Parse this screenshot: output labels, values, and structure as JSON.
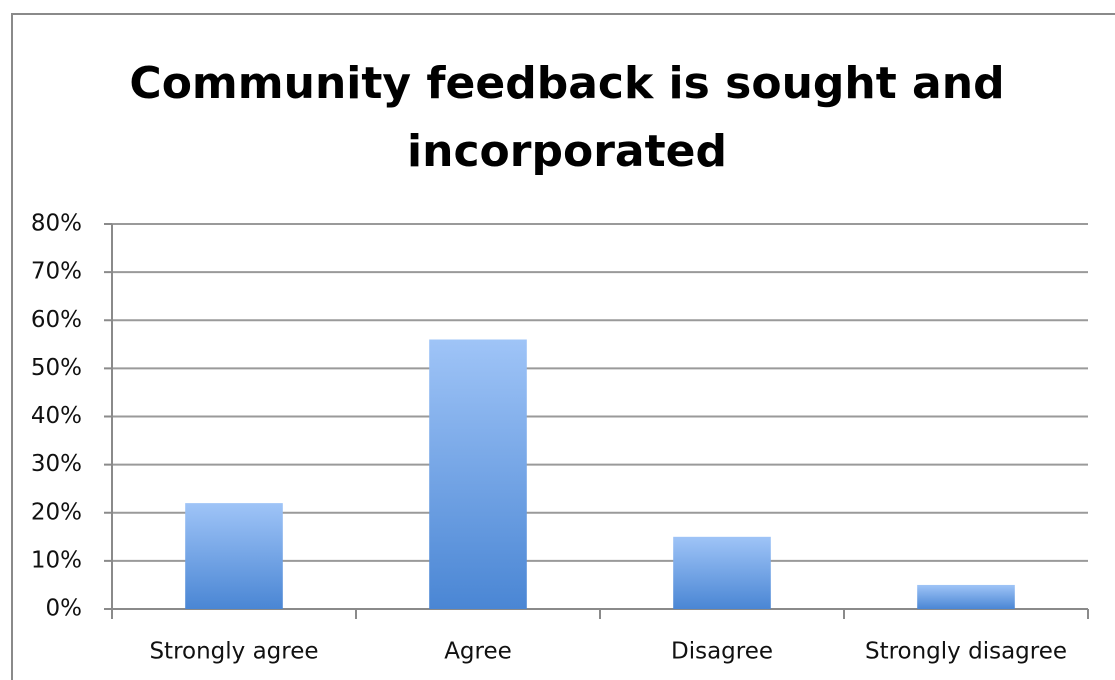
{
  "chart_data": {
    "type": "bar",
    "title": "Community feedback is sought and incorporated",
    "categories": [
      "Strongly agree",
      "Agree",
      "Disagree",
      "Strongly disagree"
    ],
    "values": [
      22,
      56,
      15,
      5
    ],
    "color": "#4a86d4",
    "ylim": [
      0,
      80
    ],
    "yticks": [
      {
        "value": 0,
        "label": "0%"
      },
      {
        "value": 10,
        "label": "10%"
      },
      {
        "value": 20,
        "label": "20%"
      },
      {
        "value": 30,
        "label": "30%"
      },
      {
        "value": 40,
        "label": "40%"
      },
      {
        "value": 50,
        "label": "50%"
      },
      {
        "value": 60,
        "label": "60%"
      },
      {
        "value": 70,
        "label": "70%"
      },
      {
        "value": 80,
        "label": "80%"
      }
    ],
    "grid": true
  }
}
